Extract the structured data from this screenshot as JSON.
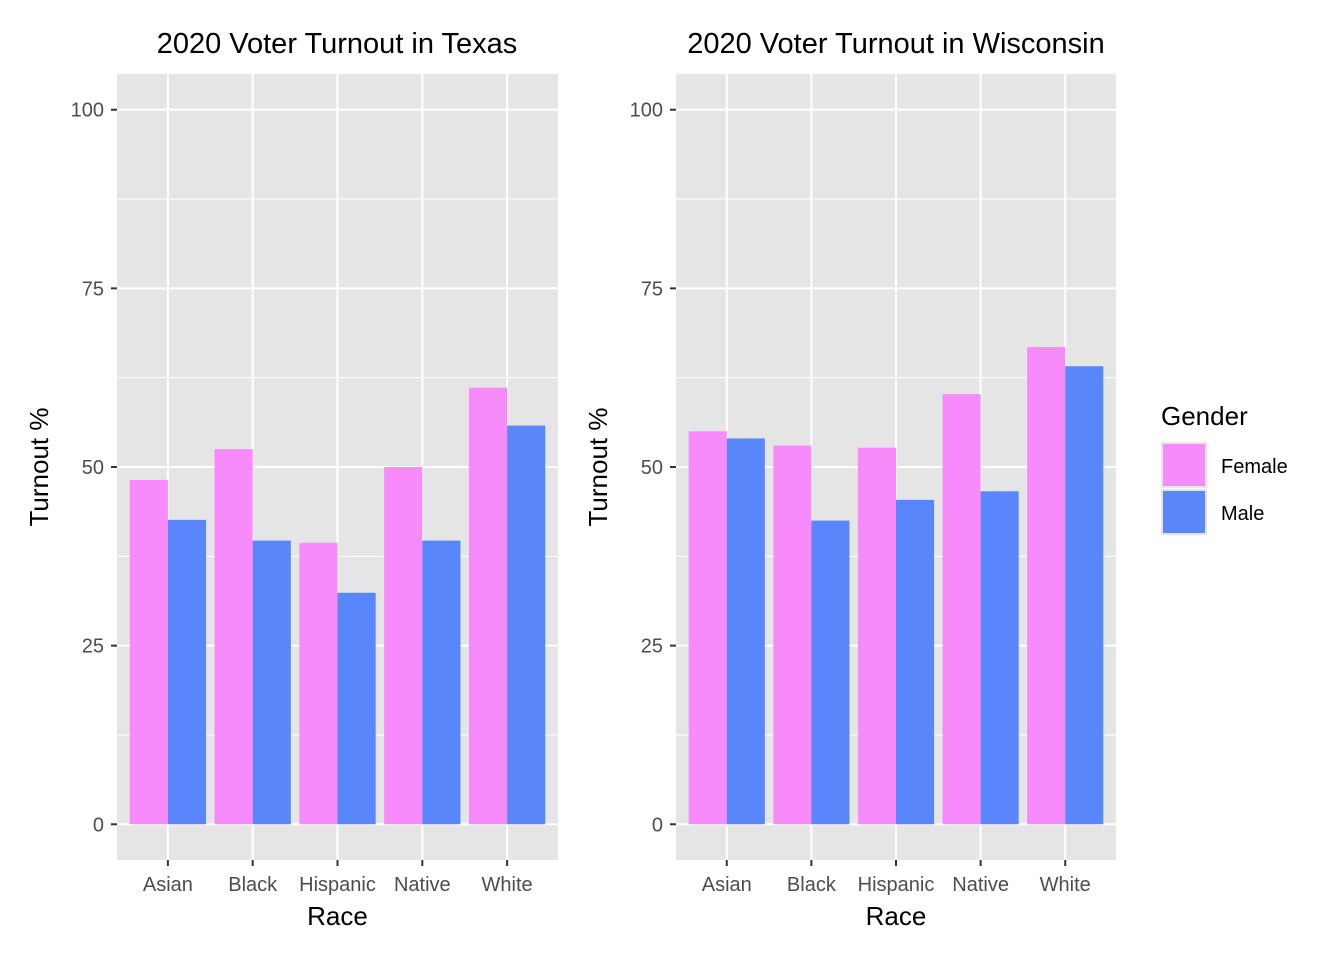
{
  "colors": {
    "panel_bg": "#E5E5E5",
    "grid": "#FFFFFF",
    "axis_text": "#4D4D4D",
    "title_text": "#000000",
    "female": "#F78BFB",
    "male": "#5987FB"
  },
  "legend": {
    "title": "Gender",
    "position": "right",
    "entries": [
      "Female",
      "Male"
    ]
  },
  "chart_data": [
    {
      "type": "bar",
      "title": "2020 Voter Turnout in Texas",
      "xlabel": "Race",
      "ylabel": "Turnout %",
      "categories": [
        "Asian",
        "Black",
        "Hispanic",
        "Native",
        "White"
      ],
      "ylim": [
        -5,
        105
      ],
      "yticks": [
        0,
        25,
        50,
        75,
        100
      ],
      "grid": true,
      "series": [
        {
          "name": "Female",
          "values": [
            48.2,
            52.5,
            39.4,
            50.0,
            61.1
          ]
        },
        {
          "name": "Male",
          "values": [
            42.6,
            39.7,
            32.4,
            39.7,
            55.8
          ]
        }
      ]
    },
    {
      "type": "bar",
      "title": "2020 Voter Turnout in Wisconsin",
      "xlabel": "Race",
      "ylabel": "Turnout %",
      "categories": [
        "Asian",
        "Black",
        "Hispanic",
        "Native",
        "White"
      ],
      "ylim": [
        -5,
        105
      ],
      "yticks": [
        0,
        25,
        50,
        75,
        100
      ],
      "grid": true,
      "series": [
        {
          "name": "Female",
          "values": [
            55.0,
            53.0,
            52.7,
            60.2,
            66.8
          ]
        },
        {
          "name": "Male",
          "values": [
            54.0,
            42.5,
            45.4,
            46.6,
            64.1
          ]
        }
      ]
    }
  ]
}
